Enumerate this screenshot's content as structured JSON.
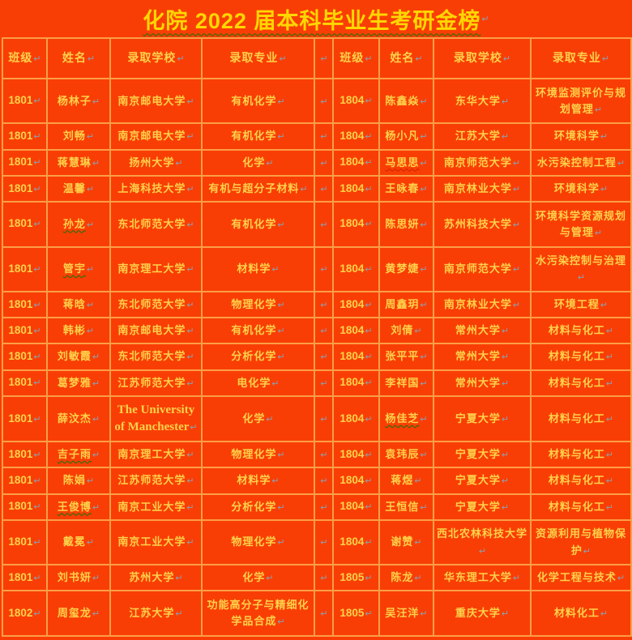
{
  "title": {
    "text": "化院 2022 届本科毕业生考研金榜"
  },
  "colors": {
    "background": "#f93e05",
    "grid_border": "#fb9e47",
    "cell_text_gold": "#ffd24a",
    "title_gold": "#ffd700",
    "pilcrow_mark": "#8aa0b4",
    "squiggle_green": "#0a7a0a",
    "squiggle_red": "#cc2200"
  },
  "pilcrow_char": "↵",
  "table": {
    "headers": [
      "班级",
      "姓名",
      "录取学校",
      "录取专业"
    ],
    "left_rows": [
      {
        "class_no": "1801",
        "name": "杨林子",
        "school": "南京邮电大学",
        "major": "有机化学"
      },
      {
        "class_no": "1801",
        "name": "刘畅",
        "school": "南京邮电大学",
        "major": "有机化学"
      },
      {
        "class_no": "1801",
        "name": "蒋慧琳",
        "school": "扬州大学",
        "major": "化学"
      },
      {
        "class_no": "1801",
        "name": "温馨",
        "school": "上海科技大学",
        "major": "有机与超分子材料"
      },
      {
        "class_no": "1801",
        "name": "孙龙",
        "school": "东北师范大学",
        "major": "有机化学",
        "name_underline": "green"
      },
      {
        "class_no": "1801",
        "name": "管宇",
        "school": "南京理工大学",
        "major": "材料学",
        "name_underline": "green"
      },
      {
        "class_no": "1801",
        "name": "蒋晗",
        "school": "东北师范大学",
        "major": "物理化学"
      },
      {
        "class_no": "1801",
        "name": "韩彬",
        "school": "南京邮电大学",
        "major": "有机化学"
      },
      {
        "class_no": "1801",
        "name": "刘敏霞",
        "school": "东北师范大学",
        "major": "分析化学"
      },
      {
        "class_no": "1801",
        "name": "葛梦雅",
        "school": "江苏师范大学",
        "major": "电化学"
      },
      {
        "class_no": "1801",
        "name": "薛汶杰",
        "school": "The University of Manchester",
        "major": "化学",
        "school_serif": true
      },
      {
        "class_no": "1801",
        "name": "吉子雨",
        "school": "南京理工大学",
        "major": "物理化学",
        "name_underline": "green"
      },
      {
        "class_no": "1801",
        "name": "陈娟",
        "school": "江苏师范大学",
        "major": "材料学"
      },
      {
        "class_no": "1801",
        "name": "王俊博",
        "school": "南京工业大学",
        "major": "分析化学",
        "name_underline": "green"
      },
      {
        "class_no": "1801",
        "name": "戴冕",
        "school": "南京工业大学",
        "major": "物理化学"
      },
      {
        "class_no": "1801",
        "name": "刘书妍",
        "school": "苏州大学",
        "major": "化学"
      },
      {
        "class_no": "1802",
        "name": "周玺龙",
        "school": "江苏大学",
        "major": "功能高分子与精细化学品合成"
      }
    ],
    "right_rows": [
      {
        "class_no": "1804",
        "name": "陈鑫焱",
        "school": "东华大学",
        "major": "环境监测评价与规划管理"
      },
      {
        "class_no": "1804",
        "name": "杨小凡",
        "school": "江苏大学",
        "major": "环境科学"
      },
      {
        "class_no": "1804",
        "name": "马思思",
        "school": "南京师范大学",
        "major": "水污染控制工程",
        "name_underline": "red"
      },
      {
        "class_no": "1804",
        "name": "王咏春",
        "school": "南京林业大学",
        "major": "环境科学"
      },
      {
        "class_no": "1804",
        "name": "陈思妍",
        "school": "苏州科技大学",
        "major": "环境科学资源规划与管理"
      },
      {
        "class_no": "1804",
        "name": "黄梦婕",
        "school": "南京师范大学",
        "major": "水污染控制与治理"
      },
      {
        "class_no": "1804",
        "name": "周鑫玥",
        "school": "南京林业大学",
        "major": "环境工程"
      },
      {
        "class_no": "1804",
        "name": "刘倩",
        "school": "常州大学",
        "major": "材料与化工"
      },
      {
        "class_no": "1804",
        "name": "张平平",
        "school": "常州大学",
        "major": "材料与化工"
      },
      {
        "class_no": "1804",
        "name": "李祥国",
        "school": "常州大学",
        "major": "材料与化工"
      },
      {
        "class_no": "1804",
        "name": "杨佳芝",
        "school": "宁夏大学",
        "major": "材料与化工",
        "name_underline": "green"
      },
      {
        "class_no": "1804",
        "name": "袁玮辰",
        "school": "宁夏大学",
        "major": "材料与化工"
      },
      {
        "class_no": "1804",
        "name": "蒋煜",
        "school": "宁夏大学",
        "major": "材料与化工"
      },
      {
        "class_no": "1804",
        "name": "王恒信",
        "school": "宁夏大学",
        "major": "材料与化工"
      },
      {
        "class_no": "1804",
        "name": "谢赞",
        "school": "西北农林科技大学",
        "major": "资源利用与植物保护"
      },
      {
        "class_no": "1805",
        "name": "陈龙",
        "school": "华东理工大学",
        "major": "化学工程与技术"
      },
      {
        "class_no": "1805",
        "name": "吴汪洋",
        "school": "重庆大学",
        "major": "材料化工"
      }
    ]
  }
}
